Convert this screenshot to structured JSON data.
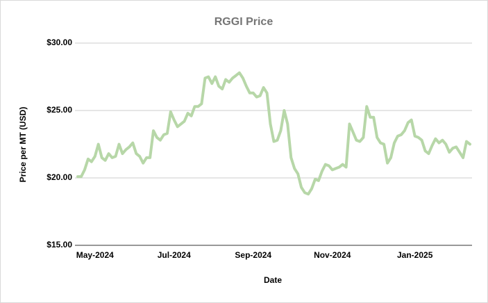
{
  "chart_data": {
    "type": "line",
    "title": "RGGI Price",
    "xlabel": "Date",
    "ylabel": "Price per MT (USD)",
    "categories": [
      null,
      null,
      null,
      null,
      null,
      "May-2024",
      null,
      null,
      null,
      null,
      null,
      null,
      null,
      null,
      null,
      null,
      null,
      null,
      null,
      null,
      null,
      null,
      null,
      null,
      null,
      null,
      null,
      null,
      "Jul-2024",
      null,
      null,
      null,
      null,
      null,
      null,
      null,
      null,
      null,
      null,
      null,
      null,
      null,
      null,
      null,
      null,
      null,
      null,
      null,
      null,
      null,
      null,
      "Sep-2024",
      null,
      null,
      null,
      null,
      null,
      null,
      null,
      null,
      null,
      null,
      null,
      null,
      null,
      null,
      null,
      null,
      null,
      null,
      null,
      null,
      null,
      null,
      "Nov-2024",
      null,
      null,
      null,
      null,
      null,
      null,
      null,
      null,
      null,
      null,
      null,
      null,
      null,
      null,
      null,
      null,
      null,
      null,
      null,
      null,
      null,
      null,
      null,
      "Jan-2025",
      null,
      null,
      null,
      null,
      null,
      null,
      null,
      null,
      null,
      null,
      null,
      null,
      null,
      null,
      null,
      null
    ],
    "series": [
      {
        "name": "RGGI Price",
        "color": "#b7d7a8",
        "values": [
          20.1,
          20.1,
          20.6,
          21.4,
          21.2,
          21.6,
          22.5,
          21.5,
          21.3,
          21.8,
          21.5,
          21.6,
          22.5,
          21.8,
          22.1,
          22.3,
          22.6,
          21.8,
          21.6,
          21.1,
          21.5,
          21.5,
          23.5,
          23.0,
          22.8,
          23.2,
          23.3,
          24.9,
          24.3,
          23.8,
          24.0,
          24.2,
          24.8,
          24.6,
          25.3,
          25.3,
          25.5,
          27.4,
          27.5,
          27.0,
          27.5,
          26.8,
          26.6,
          27.3,
          27.1,
          27.4,
          27.6,
          27.8,
          27.4,
          26.8,
          26.3,
          26.3,
          26.0,
          26.1,
          26.7,
          26.3,
          24.0,
          22.7,
          22.8,
          23.5,
          25.0,
          24.0,
          21.5,
          20.7,
          20.3,
          19.3,
          18.9,
          18.8,
          19.2,
          19.9,
          19.8,
          20.5,
          21.0,
          20.9,
          20.6,
          20.7,
          20.8,
          21.0,
          20.8,
          24.0,
          23.4,
          22.8,
          22.7,
          23.0,
          25.3,
          24.5,
          24.5,
          23.0,
          22.6,
          22.5,
          21.1,
          21.5,
          22.6,
          23.1,
          23.2,
          23.5,
          24.1,
          24.3,
          23.1,
          23.0,
          22.8,
          22.0,
          21.8,
          22.4,
          22.9,
          22.6,
          22.8,
          22.5,
          21.9,
          22.2,
          22.3,
          21.9,
          21.5,
          22.7,
          22.5
        ]
      }
    ],
    "ylim": [
      15,
      30
    ],
    "yticks": [
      {
        "value": 15,
        "label": "$15.00"
      },
      {
        "value": 20,
        "label": "$20.00"
      },
      {
        "value": 25,
        "label": "$25.00"
      },
      {
        "value": 30,
        "label": "$30.00"
      }
    ],
    "grid": true
  }
}
